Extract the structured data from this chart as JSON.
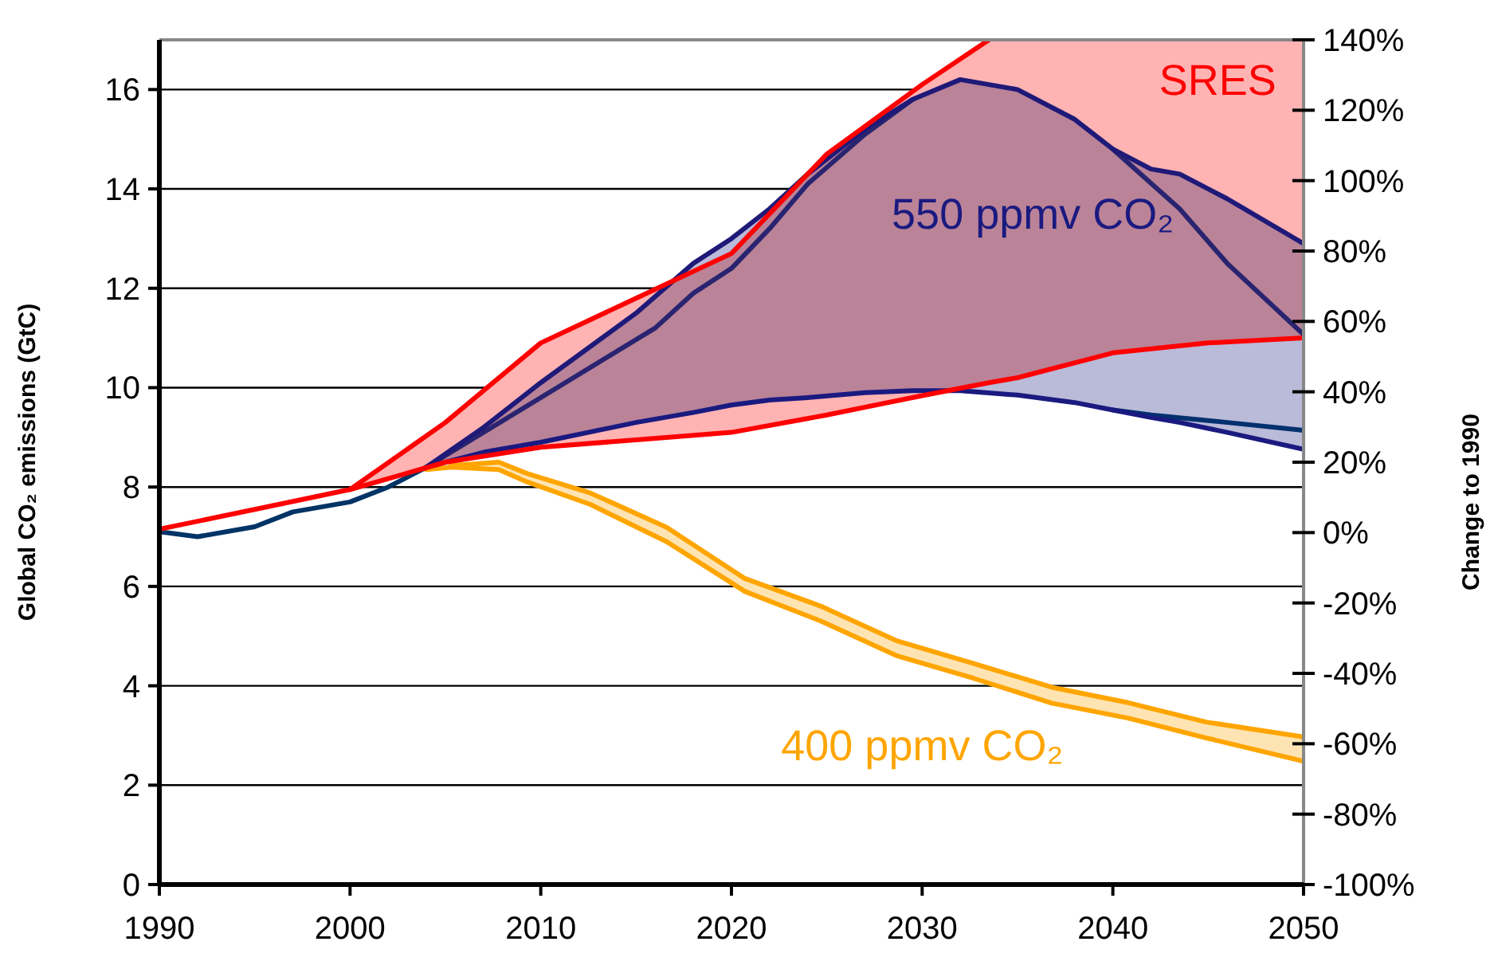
{
  "chart_data": {
    "type": "line",
    "ylabel": "Global CO₂ emissions (GtC)",
    "y2label": "Change to 1990",
    "xlim": [
      1990,
      2050
    ],
    "xticks": [
      1990,
      2000,
      2010,
      2020,
      2030,
      2040,
      2050
    ],
    "ylim": [
      0,
      17
    ],
    "yticks": [
      0,
      2,
      4,
      6,
      8,
      10,
      12,
      14,
      16
    ],
    "y2lim": [
      -100,
      140
    ],
    "y2ticks": [
      {
        "value": -100,
        "label": "-100%"
      },
      {
        "value": -80,
        "label": "-80%"
      },
      {
        "value": -60,
        "label": "-60%"
      },
      {
        "value": -40,
        "label": "-40%"
      },
      {
        "value": -20,
        "label": "-20%"
      },
      {
        "value": 0,
        "label": "0%"
      },
      {
        "value": 20,
        "label": "20%"
      },
      {
        "value": 40,
        "label": "40%"
      },
      {
        "value": 60,
        "label": "60%"
      },
      {
        "value": 80,
        "label": "80%"
      },
      {
        "value": 100,
        "label": "100%"
      },
      {
        "value": 120,
        "label": "120%"
      },
      {
        "value": 140,
        "label": "140%"
      }
    ],
    "grid": "y",
    "series": [
      {
        "name": "SRES",
        "color": "#ff0000",
        "x": [
          1990,
          1995,
          2000,
          2005,
          2010,
          2015,
          2020,
          2025,
          2030,
          2033.5,
          2035,
          2040,
          2045,
          2050
        ],
        "values": [
          7.15,
          7.55,
          7.95,
          8.5,
          8.8,
          8.95,
          9.1,
          9.45,
          9.84,
          10.1,
          10.2,
          10.7,
          10.9,
          11.0
        ],
        "lower": [
          7.15,
          7.55,
          7.95,
          8.5,
          8.8,
          8.95,
          9.1,
          9.45,
          9.84,
          10.1,
          10.2,
          10.7,
          10.9,
          11.0
        ],
        "upper": [
          7.15,
          7.55,
          7.95,
          9.3,
          10.9,
          11.8,
          12.7,
          14.7,
          16.1,
          17,
          17,
          17,
          17,
          17
        ]
      },
      {
        "color": "#ff0000",
        "x": [
          2000,
          2005,
          2010,
          2015,
          2020,
          2025,
          2030,
          2033.5
        ],
        "values": [
          7.95,
          9.3,
          10.9,
          11.8,
          12.7,
          14.7,
          16.1,
          17
        ]
      },
      {
        "color": "#003366",
        "x": [
          1990,
          1992,
          1995,
          1997,
          2000,
          2002,
          2004
        ],
        "values": [
          7.1,
          7.0,
          7.2,
          7.5,
          7.7,
          8.0,
          8.4
        ]
      },
      {
        "name": "550 ppmv CO₂",
        "color": "#1a1a80",
        "x": [
          2004,
          2007,
          2010,
          2015,
          2018,
          2020,
          2022,
          2024,
          2027,
          2029.5,
          2032,
          2035,
          2038,
          2040,
          2042,
          2043.5,
          2046,
          2050
        ],
        "values": [
          8.4,
          8.7,
          8.9,
          9.3,
          9.5,
          9.65,
          9.75,
          9.8,
          9.9,
          9.94,
          9.94,
          9.85,
          9.7,
          9.55,
          9.4,
          9.3,
          9.1,
          8.76
        ],
        "lower": [
          8.4,
          8.7,
          8.9,
          9.3,
          9.5,
          9.65,
          9.75,
          9.8,
          9.9,
          9.94,
          9.94,
          9.85,
          9.7,
          9.55,
          9.4,
          9.3,
          9.1,
          8.76
        ],
        "upper": [
          8.4,
          9.2,
          10.1,
          11.5,
          12.5,
          13.0,
          13.6,
          14.3,
          15.2,
          15.8,
          16.2,
          16.0,
          15.4,
          14.8,
          14.4,
          14.3,
          13.8,
          12.9
        ]
      },
      {
        "color": "#1f1a78",
        "x": [
          2004,
          2007,
          2010,
          2015,
          2018,
          2020,
          2022,
          2024,
          2027,
          2029.5,
          2032,
          2035,
          2038,
          2040,
          2042,
          2043.5,
          2046,
          2050
        ],
        "values": [
          8.4,
          9.2,
          10.1,
          11.5,
          12.5,
          13.0,
          13.6,
          14.3,
          15.2,
          15.8,
          16.2,
          16.0,
          15.4,
          14.8,
          14.4,
          14.3,
          13.8,
          12.9
        ]
      },
      {
        "color": "#2a2470",
        "x": [
          2004,
          2010,
          2016,
          2018,
          2020,
          2022,
          2024,
          2027,
          2029.5,
          2032,
          2040,
          2043.5,
          2046,
          2050
        ],
        "values": [
          8.4,
          9.8,
          11.2,
          11.9,
          12.4,
          13.2,
          14.1,
          15.1,
          15.8,
          null,
          14.8,
          13.6,
          12.5,
          11.07
        ]
      },
      {
        "color": "#00306e",
        "x": [
          2040,
          2042,
          2046,
          2050
        ],
        "values": [
          9.55,
          9.45,
          9.3,
          9.14
        ]
      },
      {
        "name": "400 ppmv CO₂",
        "color": "#ffa500",
        "x": [
          2004,
          2005.3,
          2007.8,
          2009.3,
          2012.6,
          2016.6,
          2020.7,
          2024.7,
          2028.7,
          2032.7,
          2036.8,
          2040.8,
          2044.9,
          2050
        ],
        "values": [
          8.35,
          8.4,
          8.35,
          8.1,
          7.65,
          6.9,
          5.9,
          5.3,
          4.6,
          4.15,
          3.65,
          3.35,
          2.95,
          2.48
        ],
        "lower": [
          8.35,
          8.4,
          8.35,
          8.1,
          7.65,
          6.9,
          5.9,
          5.3,
          4.6,
          4.15,
          3.65,
          3.35,
          2.95,
          2.48
        ],
        "upper": [
          8.35,
          8.43,
          8.5,
          8.27,
          7.88,
          7.19,
          6.16,
          5.6,
          4.9,
          4.45,
          3.97,
          3.66,
          3.27,
          2.97
        ]
      },
      {
        "color": "#ffa500",
        "x": [
          2005.3,
          2007.8,
          2009.3,
          2012.6,
          2016.6,
          2020.7,
          2024.7,
          2028.7,
          2032.7,
          2036.8,
          2040.8,
          2044.9,
          2050
        ],
        "values": [
          8.43,
          8.5,
          8.27,
          7.88,
          7.19,
          6.16,
          5.6,
          4.9,
          4.45,
          3.97,
          3.66,
          3.27,
          2.97
        ]
      }
    ]
  }
}
